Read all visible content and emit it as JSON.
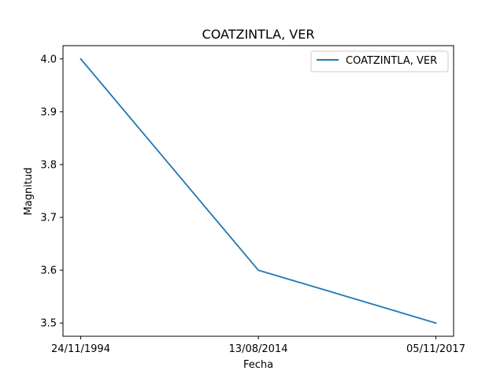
{
  "chart_data": {
    "type": "line",
    "title": "COATZINTLA, VER",
    "xlabel": "Fecha",
    "ylabel": "Magnitud",
    "categories": [
      "24/11/1994",
      "13/08/2014",
      "05/11/2017"
    ],
    "series": [
      {
        "name": "COATZINTLA, VER",
        "values": [
          4.0,
          3.6,
          3.5
        ],
        "color": "#1f77b4"
      }
    ],
    "y_ticks": [
      "3.5",
      "3.6",
      "3.7",
      "3.8",
      "3.9",
      "4.0"
    ],
    "ylim": [
      3.475,
      4.025
    ],
    "grid": false,
    "legend_position": "upper right"
  }
}
